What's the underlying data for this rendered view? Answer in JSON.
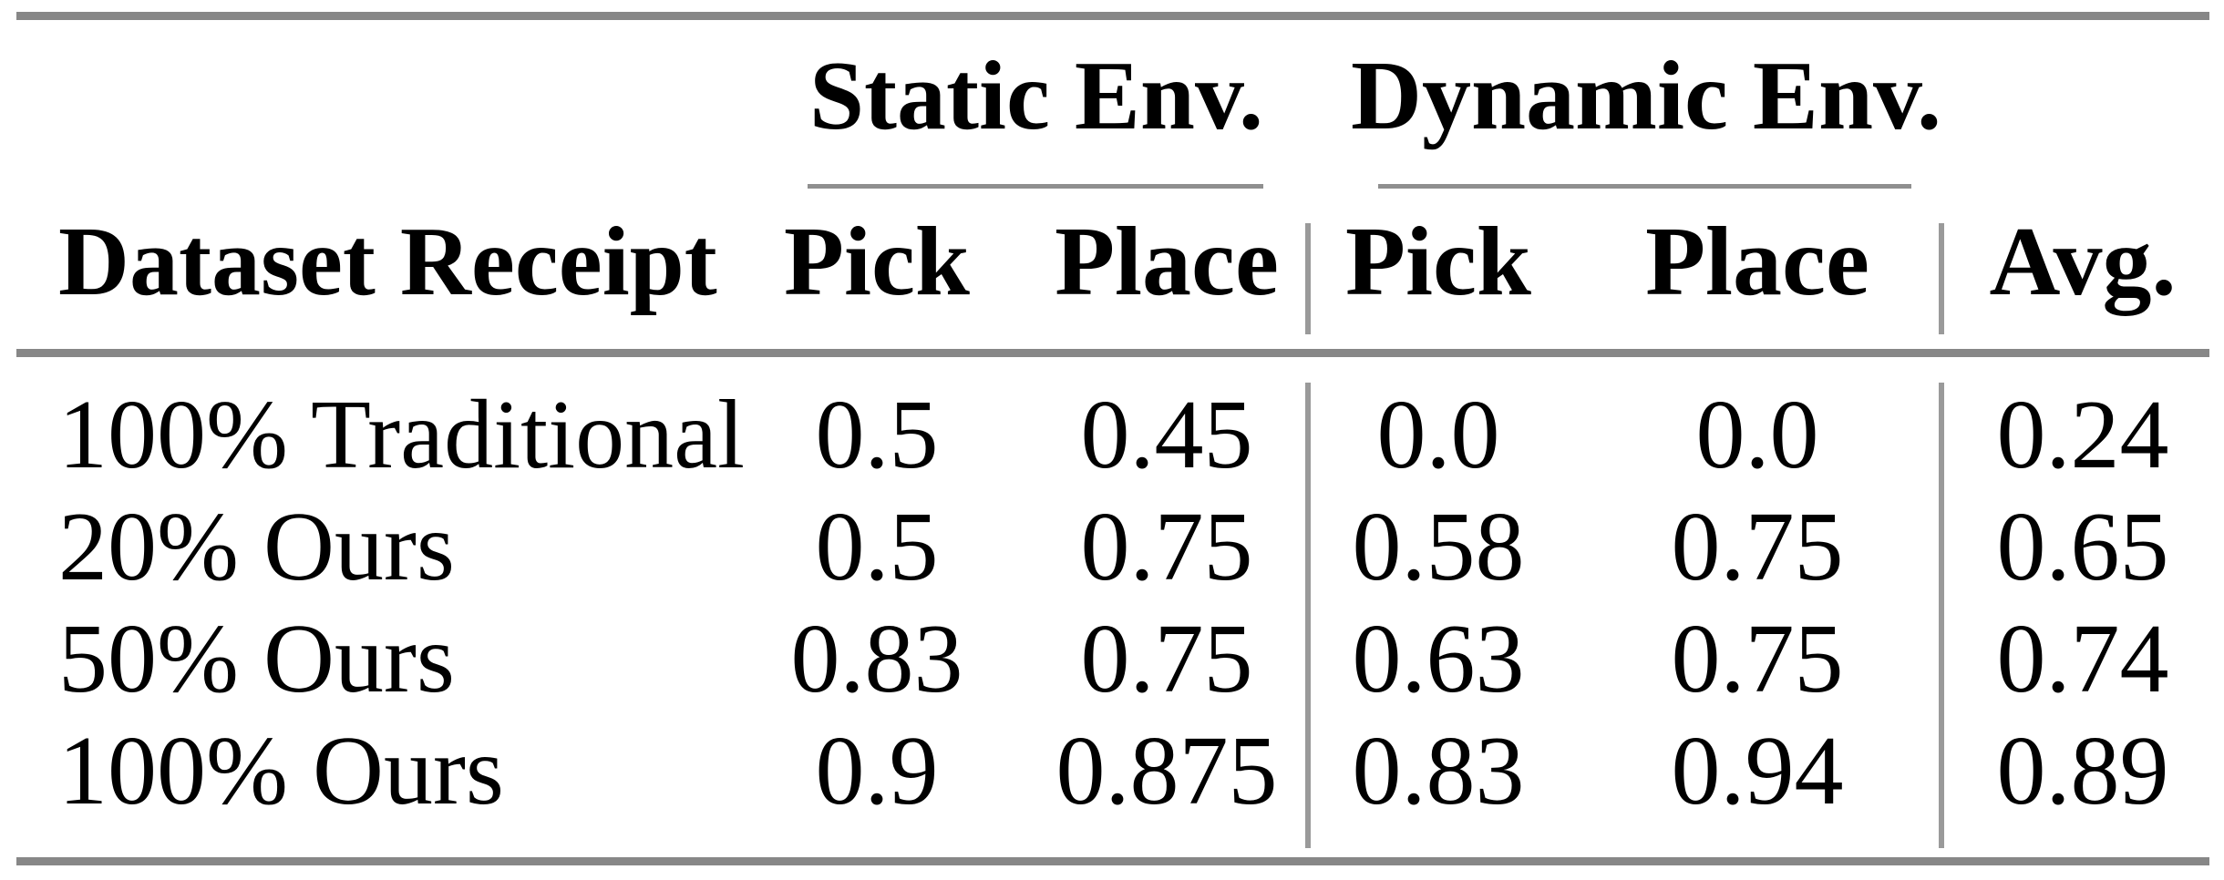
{
  "table": {
    "group_headers": [
      {
        "label": "Static Env."
      },
      {
        "label": "Dynamic Env."
      }
    ],
    "columns": {
      "dataset": "Dataset Receipt",
      "static_pick": "Pick",
      "static_place": "Place",
      "dynamic_pick": "Pick",
      "dynamic_place": "Place",
      "avg": "Avg."
    },
    "rows": [
      {
        "dataset": "100% Traditional",
        "static_pick": "0.5",
        "static_place": "0.45",
        "dynamic_pick": "0.0",
        "dynamic_place": "0.0",
        "avg": "0.24"
      },
      {
        "dataset": "20% Ours",
        "static_pick": "0.5",
        "static_place": "0.75",
        "dynamic_pick": "0.58",
        "dynamic_place": "0.75",
        "avg": "0.65"
      },
      {
        "dataset": "50% Ours",
        "static_pick": "0.83",
        "static_place": "0.75",
        "dynamic_pick": "0.63",
        "dynamic_place": "0.75",
        "avg": "0.74"
      },
      {
        "dataset": "100% Ours",
        "static_pick": "0.9",
        "static_place": "0.875",
        "dynamic_pick": "0.83",
        "dynamic_place": "0.94",
        "avg": "0.89"
      }
    ],
    "colors": {
      "rule": "#878787",
      "thin_rule": "#9a9a9a",
      "text": "#000000",
      "background": "#ffffff"
    }
  }
}
